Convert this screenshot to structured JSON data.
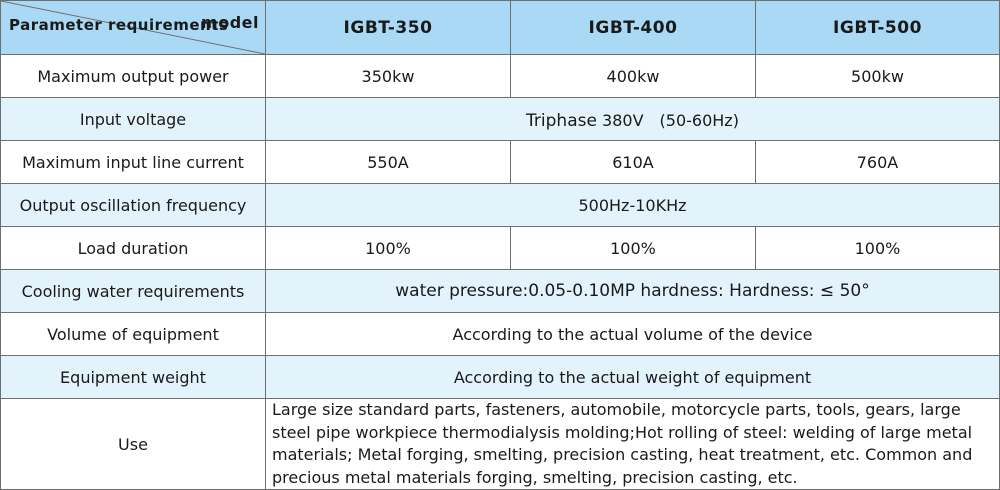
{
  "header": {
    "corner_top": "model",
    "corner_bottom": "Parameter requirements",
    "models": [
      "IGBT-350",
      "IGBT-400",
      "IGBT-500"
    ]
  },
  "rows": {
    "max_output_power": {
      "label": "Maximum output power",
      "values": [
        "350kw",
        "400kw",
        "500kw"
      ]
    },
    "input_voltage": {
      "label": "Input voltage",
      "value_a": "Triphase",
      "value_b": "380V　(50-60Hz)"
    },
    "max_input_current": {
      "label": "Maximum input line current",
      "values": [
        "550A",
        "610A",
        "760A"
      ]
    },
    "output_freq": {
      "label": "Output oscillation frequency",
      "value": "500Hz-10KHz"
    },
    "load_duration": {
      "label": "Load duration",
      "values": [
        "100%",
        "100%",
        "100%"
      ]
    },
    "cooling_water": {
      "label": "Cooling water requirements",
      "value": "water pressure:0.05-0.10MP hardness:  Hardness: ≤ 50°"
    },
    "volume": {
      "label": "Volume of equipment",
      "value": "According to the actual volume of the device"
    },
    "weight": {
      "label": "Equipment weight",
      "value": "According to the actual weight of equipment"
    },
    "use": {
      "label": "Use",
      "value": "Large size standard parts, fasteners, automobile, motorcycle parts, tools, gears, large steel pipe workpiece thermodialysis molding;Hot rolling of steel: welding of large metal materials; Metal forging, smelting, precision casting, heat treatment, etc. Common and precious metal materials forging, smelting, precision casting, etc."
    }
  },
  "colors": {
    "header_bg": "#a9d9f5",
    "alt_row_bg": "#e3f3fc",
    "border": "#6f6f6f"
  }
}
